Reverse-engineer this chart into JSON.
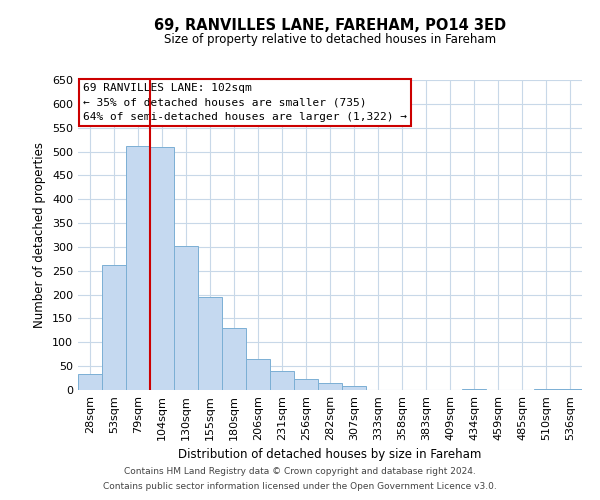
{
  "title": "69, RANVILLES LANE, FAREHAM, PO14 3ED",
  "subtitle": "Size of property relative to detached houses in Fareham",
  "xlabel": "Distribution of detached houses by size in Fareham",
  "ylabel": "Number of detached properties",
  "bar_labels": [
    "28sqm",
    "53sqm",
    "79sqm",
    "104sqm",
    "130sqm",
    "155sqm",
    "180sqm",
    "206sqm",
    "231sqm",
    "256sqm",
    "282sqm",
    "307sqm",
    "333sqm",
    "358sqm",
    "383sqm",
    "409sqm",
    "434sqm",
    "459sqm",
    "485sqm",
    "510sqm",
    "536sqm"
  ],
  "bar_values": [
    33,
    263,
    512,
    510,
    302,
    196,
    131,
    65,
    40,
    23,
    15,
    8,
    0,
    0,
    0,
    0,
    2,
    0,
    0,
    3,
    2
  ],
  "bar_color": "#c5d9f0",
  "bar_edge_color": "#7bafd4",
  "vline_x_index": 3,
  "vline_color": "#cc0000",
  "ylim": [
    0,
    650
  ],
  "yticks": [
    0,
    50,
    100,
    150,
    200,
    250,
    300,
    350,
    400,
    450,
    500,
    550,
    600,
    650
  ],
  "annotation_line1": "69 RANVILLES LANE: 102sqm",
  "annotation_line2": "← 35% of detached houses are smaller (735)",
  "annotation_line3": "64% of semi-detached houses are larger (1,322) →",
  "annotation_box_edge": "#cc0000",
  "footer1": "Contains HM Land Registry data © Crown copyright and database right 2024.",
  "footer2": "Contains public sector information licensed under the Open Government Licence v3.0.",
  "background_color": "#ffffff",
  "grid_color": "#c8d8e8"
}
